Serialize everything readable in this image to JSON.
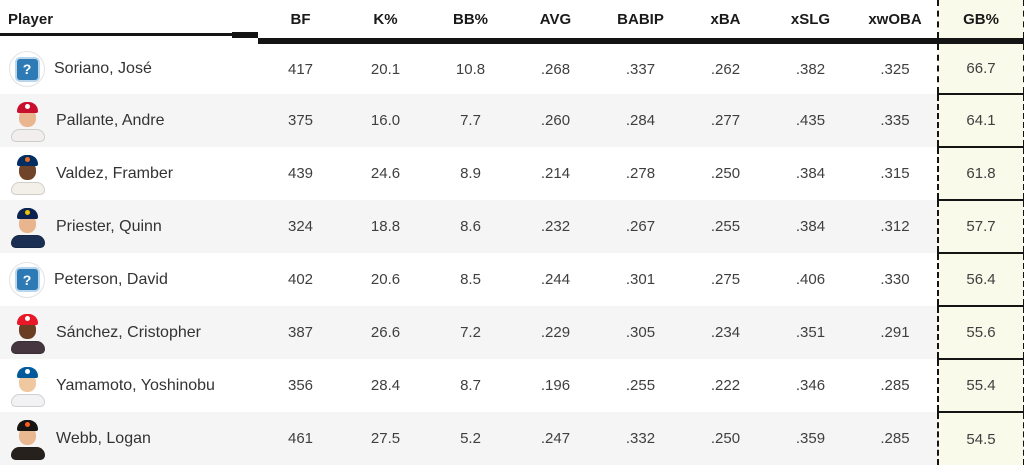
{
  "table": {
    "columns": [
      {
        "key": "player",
        "label": "Player"
      },
      {
        "key": "bf",
        "label": "BF"
      },
      {
        "key": "k",
        "label": "K%"
      },
      {
        "key": "bb",
        "label": "BB%"
      },
      {
        "key": "avg",
        "label": "AVG"
      },
      {
        "key": "babip",
        "label": "BABIP"
      },
      {
        "key": "xba",
        "label": "xBA"
      },
      {
        "key": "xslg",
        "label": "xSLG"
      },
      {
        "key": "xwoba",
        "label": "xwOBA"
      },
      {
        "key": "gb",
        "label": "GB%"
      }
    ],
    "players": [
      {
        "name": "Soriano, José",
        "bf": "417",
        "k": "20.1",
        "bb": "10.8",
        "avg": ".268",
        "babip": ".337",
        "xba": ".262",
        "xslg": ".382",
        "xwoba": ".325",
        "gb": "66.7",
        "avatar": {
          "type": "placeholder"
        }
      },
      {
        "name": "Pallante, Andre",
        "bf": "375",
        "k": "16.0",
        "bb": "7.7",
        "avg": ".260",
        "babip": ".284",
        "xba": ".277",
        "xslg": ".435",
        "xwoba": ".335",
        "gb": "64.1",
        "avatar": {
          "type": "photo",
          "cap": "#c8102e",
          "skin": "#eab690",
          "jersey": "#f2eeee",
          "logo": "#ffffff"
        }
      },
      {
        "name": "Valdez, Framber",
        "bf": "439",
        "k": "24.6",
        "bb": "8.9",
        "avg": ".214",
        "babip": ".278",
        "xba": ".250",
        "xslg": ".384",
        "xwoba": ".315",
        "gb": "61.8",
        "avatar": {
          "type": "photo",
          "cap": "#002d62",
          "skin": "#6f4428",
          "jersey": "#f3f0ea",
          "logo": "#eb6e1f"
        }
      },
      {
        "name": "Priester, Quinn",
        "bf": "324",
        "k": "18.8",
        "bb": "8.6",
        "avg": ".232",
        "babip": ".267",
        "xba": ".255",
        "xslg": ".384",
        "xwoba": ".312",
        "gb": "57.7",
        "avatar": {
          "type": "photo",
          "cap": "#0a2351",
          "skin": "#e8b58e",
          "jersey": "#1b2f52",
          "logo": "#f1c400"
        }
      },
      {
        "name": "Peterson, David",
        "bf": "402",
        "k": "20.6",
        "bb": "8.5",
        "avg": ".244",
        "babip": ".301",
        "xba": ".275",
        "xslg": ".406",
        "xwoba": ".330",
        "gb": "56.4",
        "avatar": {
          "type": "placeholder"
        }
      },
      {
        "name": "Sánchez, Cristopher",
        "bf": "387",
        "k": "26.6",
        "bb": "7.2",
        "avg": ".229",
        "babip": ".305",
        "xba": ".234",
        "xslg": ".351",
        "xwoba": ".291",
        "gb": "55.6",
        "avatar": {
          "type": "photo",
          "cap": "#e81828",
          "skin": "#6b3d22",
          "jersey": "#453640",
          "logo": "#ffffff"
        }
      },
      {
        "name": "Yamamoto, Yoshinobu",
        "bf": "356",
        "k": "28.4",
        "bb": "8.7",
        "avg": ".196",
        "babip": ".255",
        "xba": ".222",
        "xslg": ".346",
        "xwoba": ".285",
        "gb": "55.4",
        "avatar": {
          "type": "photo",
          "cap": "#005a9c",
          "skin": "#f0c8a0",
          "jersey": "#f2f2f4",
          "logo": "#ffffff"
        }
      },
      {
        "name": "Webb, Logan",
        "bf": "461",
        "k": "27.5",
        "bb": "5.2",
        "avg": ".247",
        "babip": ".332",
        "xba": ".250",
        "xslg": ".359",
        "xwoba": ".285",
        "gb": "54.5",
        "avatar": {
          "type": "photo",
          "cap": "#161514",
          "skin": "#eab890",
          "jersey": "#27211e",
          "logo": "#fd5a1e"
        }
      }
    ]
  },
  "icons": {
    "placeholder_glyph": "?"
  },
  "colors": {
    "highlight_bg": "#fafaeb",
    "stripe": "#f5f5f5",
    "header_rule": "#141414",
    "placeholder_blue": "#2e7ab5",
    "placeholder_ring": "#b9d6ec"
  }
}
